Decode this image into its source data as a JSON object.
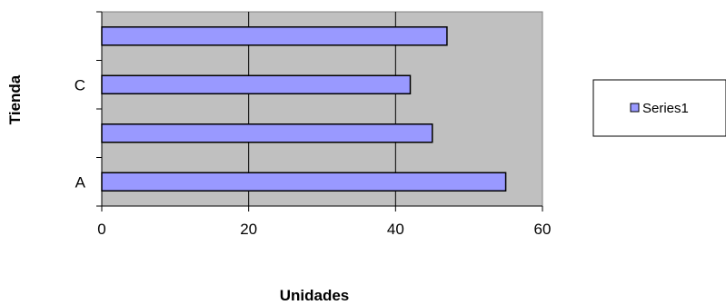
{
  "chart_data": {
    "type": "bar",
    "orientation": "horizontal",
    "categories": [
      "A",
      "",
      "C",
      ""
    ],
    "series": [
      {
        "name": "Series1",
        "values": [
          55,
          45,
          42,
          47
        ],
        "color": "#9999ff"
      }
    ],
    "xlabel": "Unidades",
    "ylabel": "Tienda",
    "xlim": [
      0,
      60
    ],
    "xticks": [
      0,
      20,
      40,
      60
    ],
    "grid": true,
    "plot_background": "#c0c0c0",
    "gridline_color": "#000000",
    "bar_edge_color": "#000000",
    "legend": {
      "placement": "right",
      "entries": [
        "Series1"
      ]
    }
  }
}
